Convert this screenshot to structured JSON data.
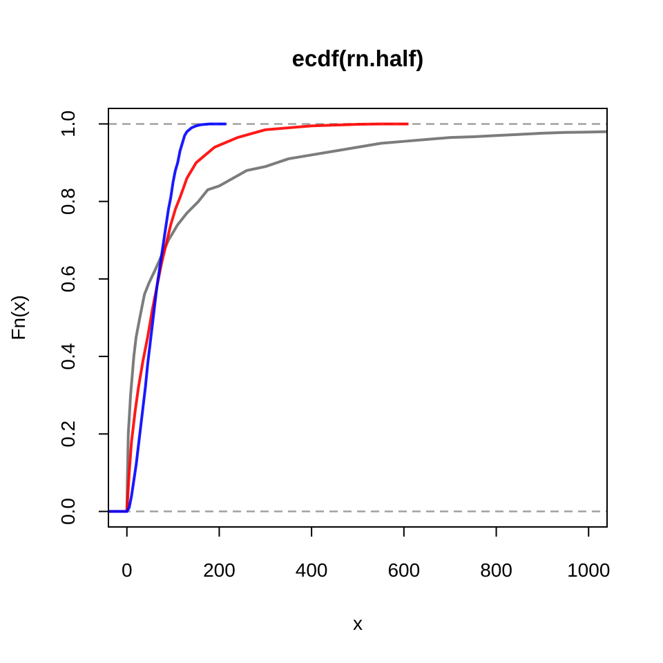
{
  "chart_data": {
    "type": "line",
    "title": "ecdf(rn.half)",
    "xlabel": "x",
    "ylabel": "Fn(x)",
    "xlim": [
      -40,
      1040
    ],
    "ylim": [
      -0.04,
      1.04
    ],
    "x_ticks": [
      0,
      200,
      400,
      600,
      800,
      1000
    ],
    "y_ticks": [
      0.0,
      0.2,
      0.4,
      0.6,
      0.8,
      1.0
    ],
    "x_tick_labels": [
      "0",
      "200",
      "400",
      "600",
      "800",
      "1000"
    ],
    "y_tick_labels": [
      "0.0",
      "0.2",
      "0.4",
      "0.6",
      "0.8",
      "1.0"
    ],
    "reference_lines": [
      {
        "y": 0,
        "style": "dashed",
        "color": "#a0a0a0"
      },
      {
        "y": 1,
        "style": "dashed",
        "color": "#a0a0a0"
      }
    ],
    "series": [
      {
        "color": "#6e6e6e",
        "points": [
          [
            -40,
            0
          ],
          [
            0,
            0
          ],
          [
            1,
            0.08
          ],
          [
            3,
            0.2
          ],
          [
            8,
            0.3
          ],
          [
            15,
            0.4
          ],
          [
            20,
            0.45
          ],
          [
            28,
            0.5
          ],
          [
            38,
            0.56
          ],
          [
            48,
            0.59
          ],
          [
            60,
            0.62
          ],
          [
            75,
            0.66
          ],
          [
            90,
            0.7
          ],
          [
            110,
            0.74
          ],
          [
            130,
            0.77
          ],
          [
            155,
            0.8
          ],
          [
            175,
            0.83
          ],
          [
            200,
            0.84
          ],
          [
            230,
            0.86
          ],
          [
            260,
            0.88
          ],
          [
            300,
            0.89
          ],
          [
            350,
            0.91
          ],
          [
            400,
            0.92
          ],
          [
            450,
            0.93
          ],
          [
            500,
            0.94
          ],
          [
            550,
            0.95
          ],
          [
            600,
            0.955
          ],
          [
            650,
            0.96
          ],
          [
            700,
            0.965
          ],
          [
            750,
            0.967
          ],
          [
            800,
            0.97
          ],
          [
            850,
            0.973
          ],
          [
            900,
            0.976
          ],
          [
            950,
            0.978
          ],
          [
            1000,
            0.979
          ],
          [
            1040,
            0.98
          ]
        ]
      },
      {
        "color": "#ff0000",
        "points": [
          [
            -40,
            0
          ],
          [
            0,
            0
          ],
          [
            2,
            0.04
          ],
          [
            5,
            0.1
          ],
          [
            10,
            0.18
          ],
          [
            18,
            0.26
          ],
          [
            25,
            0.32
          ],
          [
            35,
            0.39
          ],
          [
            45,
            0.45
          ],
          [
            55,
            0.52
          ],
          [
            65,
            0.58
          ],
          [
            75,
            0.64
          ],
          [
            85,
            0.69
          ],
          [
            95,
            0.74
          ],
          [
            105,
            0.78
          ],
          [
            115,
            0.81
          ],
          [
            130,
            0.86
          ],
          [
            150,
            0.9
          ],
          [
            170,
            0.92
          ],
          [
            190,
            0.94
          ],
          [
            210,
            0.95
          ],
          [
            240,
            0.965
          ],
          [
            270,
            0.975
          ],
          [
            300,
            0.985
          ],
          [
            350,
            0.99
          ],
          [
            400,
            0.995
          ],
          [
            450,
            0.997
          ],
          [
            500,
            0.999
          ],
          [
            550,
            1.0
          ],
          [
            610,
            1.0
          ]
        ]
      },
      {
        "color": "#0000ff",
        "points": [
          [
            -40,
            0
          ],
          [
            0,
            0
          ],
          [
            5,
            0.01
          ],
          [
            10,
            0.04
          ],
          [
            15,
            0.08
          ],
          [
            20,
            0.12
          ],
          [
            25,
            0.17
          ],
          [
            30,
            0.22
          ],
          [
            35,
            0.27
          ],
          [
            40,
            0.32
          ],
          [
            45,
            0.38
          ],
          [
            50,
            0.43
          ],
          [
            55,
            0.48
          ],
          [
            60,
            0.53
          ],
          [
            65,
            0.58
          ],
          [
            70,
            0.62
          ],
          [
            75,
            0.66
          ],
          [
            80,
            0.7
          ],
          [
            85,
            0.74
          ],
          [
            90,
            0.78
          ],
          [
            95,
            0.81
          ],
          [
            100,
            0.85
          ],
          [
            105,
            0.88
          ],
          [
            110,
            0.9
          ],
          [
            115,
            0.93
          ],
          [
            120,
            0.95
          ],
          [
            125,
            0.97
          ],
          [
            130,
            0.98
          ],
          [
            140,
            0.99
          ],
          [
            150,
            0.995
          ],
          [
            160,
            0.998
          ],
          [
            180,
            1.0
          ],
          [
            215,
            1.0
          ]
        ]
      }
    ]
  }
}
